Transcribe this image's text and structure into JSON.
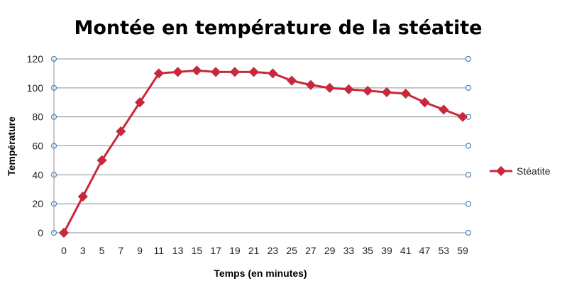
{
  "chart_data": {
    "type": "line",
    "title": "Montée en température de la stéatite",
    "xlabel": "Temps (en minutes)",
    "ylabel": "Température",
    "categories": [
      "0",
      "3",
      "5",
      "7",
      "9",
      "11",
      "13",
      "15",
      "17",
      "19",
      "21",
      "23",
      "25",
      "27",
      "29",
      "33",
      "35",
      "39",
      "41",
      "47",
      "53",
      "59"
    ],
    "series": [
      {
        "name": "Stéatite",
        "values": [
          0,
          25,
          50,
          70,
          90,
          110,
          111,
          112,
          111,
          111,
          111,
          110,
          105,
          102,
          100,
          99,
          98,
          97,
          96,
          90,
          85,
          80
        ]
      }
    ],
    "ylim": [
      0,
      120
    ],
    "yticks": [
      0,
      20,
      40,
      60,
      80,
      100,
      120
    ],
    "grid": true,
    "legend": "right",
    "colors": {
      "series": "#C8283C",
      "grid": "#8c8c8c",
      "axis_marker": "#4a7fb5"
    }
  }
}
